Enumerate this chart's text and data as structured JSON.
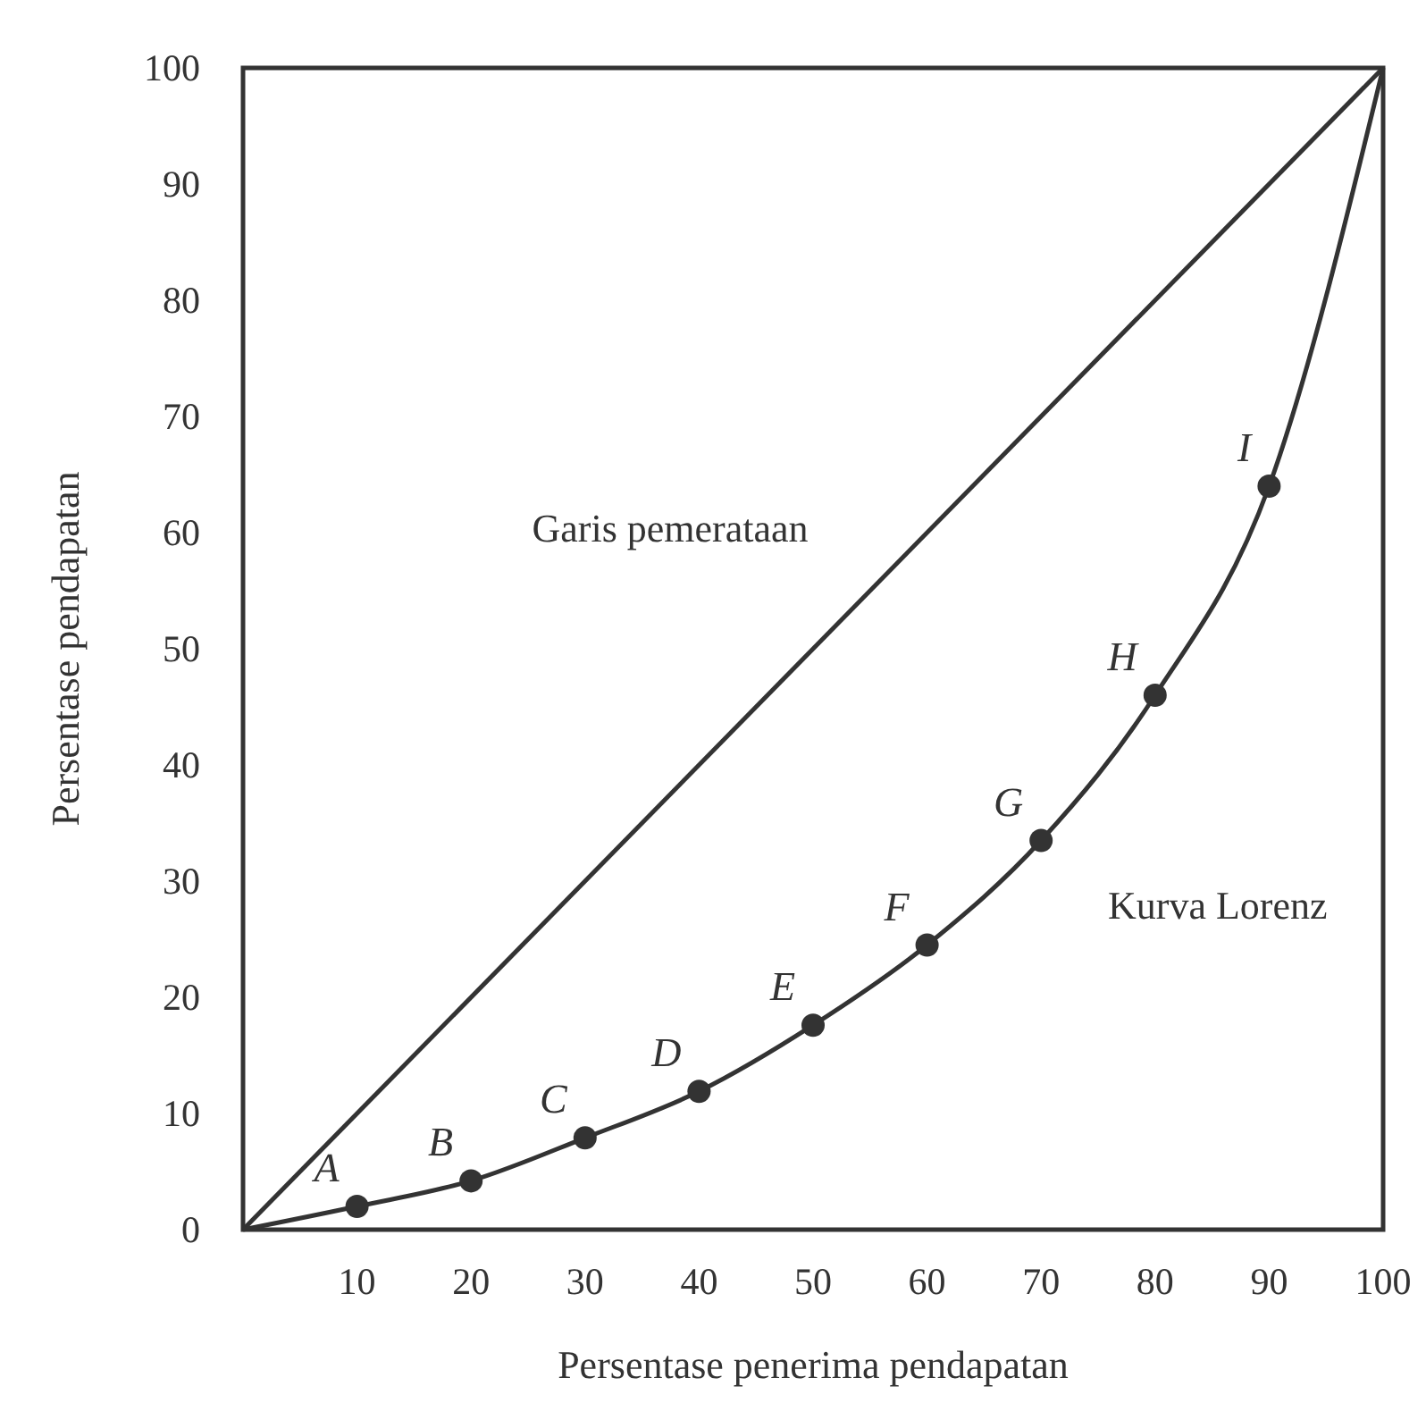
{
  "chart_data": {
    "type": "line",
    "xlabel": "Persentase penerima pendapatan",
    "ylabel": "Persentase pendapatan",
    "xlim": [
      0,
      100
    ],
    "ylim": [
      0,
      100
    ],
    "xticks": [
      10,
      20,
      30,
      40,
      50,
      60,
      70,
      80,
      90,
      100
    ],
    "yticks": [
      0,
      10,
      20,
      30,
      40,
      50,
      60,
      70,
      80,
      90,
      100
    ],
    "grid": false,
    "series": [
      {
        "color": "#333333",
        "x": [
          0,
          100
        ],
        "values": [
          0,
          100
        ],
        "marker": "none"
      },
      {
        "color": "#333333",
        "x": [
          0,
          10,
          20,
          30,
          40,
          50,
          60,
          70,
          80,
          90,
          100
        ],
        "values": [
          0,
          2,
          4.2,
          7.9,
          11.9,
          17.6,
          24.5,
          33.5,
          46,
          64,
          100
        ],
        "marker": "none"
      },
      {
        "type": "scatter",
        "color": "#333333",
        "x": [
          10,
          20,
          30,
          40,
          50,
          60,
          70,
          80,
          90
        ],
        "values": [
          2,
          4.2,
          7.9,
          11.9,
          17.6,
          24.5,
          33.5,
          46,
          64
        ],
        "marker": "circle"
      }
    ],
    "annotations": [
      "Garis pemerataan",
      "Kurva Lorenz",
      {
        "text": "A",
        "x": 10,
        "y": 2
      },
      {
        "text": "B",
        "x": 20,
        "y": 4.2
      },
      {
        "text": "C",
        "x": 30,
        "y": 7.9
      },
      {
        "text": "D",
        "x": 40,
        "y": 11.9
      },
      {
        "text": "E",
        "x": 50,
        "y": 17.6
      },
      {
        "text": "F",
        "x": 60,
        "y": 24.5
      },
      {
        "text": "G",
        "x": 70,
        "y": 33.5
      },
      {
        "text": "H",
        "x": 80,
        "y": 46
      },
      {
        "text": "I",
        "x": 90,
        "y": 64
      }
    ]
  }
}
